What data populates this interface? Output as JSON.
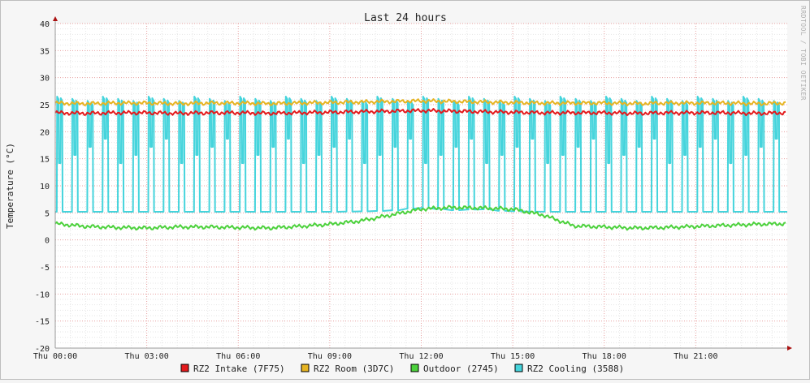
{
  "chart_data": {
    "type": "line",
    "title": "Last 24 hours",
    "ylabel": "Temperature (°C)",
    "xlabel": "",
    "watermark": "RRDTOOL / TOBI OETIKER",
    "ylim": [
      -20,
      40
    ],
    "yticks": [
      40,
      35,
      30,
      25,
      20,
      15,
      10,
      5,
      0,
      -5,
      -10,
      -15,
      -20
    ],
    "xlim": [
      0,
      24
    ],
    "xticks": [
      {
        "h": 0,
        "label": "Thu 00:00"
      },
      {
        "h": 3,
        "label": "Thu 03:00"
      },
      {
        "h": 6,
        "label": "Thu 06:00"
      },
      {
        "h": 9,
        "label": "Thu 09:00"
      },
      {
        "h": 12,
        "label": "Thu 12:00"
      },
      {
        "h": 15,
        "label": "Thu 15:00"
      },
      {
        "h": 18,
        "label": "Thu 18:00"
      },
      {
        "h": 21,
        "label": "Thu 21:00"
      }
    ],
    "grid": true,
    "legend_position": "bottom",
    "series": [
      {
        "name": "RZ2 Intake (7F75)",
        "color": "#e31a1c",
        "x": [
          0,
          1,
          2,
          3,
          4,
          5,
          6,
          7,
          8,
          9,
          10,
          11,
          12,
          13,
          14,
          15,
          16,
          17,
          18,
          19,
          20,
          21,
          22,
          23,
          24
        ],
        "values": [
          23.5,
          23.4,
          23.5,
          23.5,
          23.4,
          23.5,
          23.5,
          23.4,
          23.5,
          23.6,
          23.7,
          23.8,
          23.9,
          23.8,
          23.7,
          23.6,
          23.5,
          23.5,
          23.5,
          23.4,
          23.5,
          23.5,
          23.5,
          23.4,
          23.5
        ]
      },
      {
        "name": "RZ2 Room (3D7C)",
        "color": "#e6b422",
        "x": [
          0,
          1,
          2,
          3,
          4,
          5,
          6,
          7,
          8,
          9,
          10,
          11,
          12,
          13,
          14,
          15,
          16,
          17,
          18,
          19,
          20,
          21,
          22,
          23,
          24
        ],
        "values": [
          25.3,
          25.2,
          25.3,
          25.3,
          25.2,
          25.3,
          25.3,
          25.2,
          25.3,
          25.4,
          25.5,
          25.6,
          25.7,
          25.6,
          25.5,
          25.4,
          25.3,
          25.3,
          25.3,
          25.2,
          25.3,
          25.3,
          25.3,
          25.2,
          25.3
        ]
      },
      {
        "name": "Outdoor (2745)",
        "color": "#4cd13c",
        "x": [
          0,
          1,
          2,
          3,
          4,
          5,
          6,
          7,
          8,
          9,
          10,
          11,
          12,
          13,
          14,
          15,
          16,
          17,
          18,
          19,
          20,
          21,
          22,
          23,
          24
        ],
        "values": [
          3.0,
          2.5,
          2.3,
          2.2,
          2.4,
          2.4,
          2.3,
          2.2,
          2.5,
          2.9,
          3.5,
          4.6,
          5.7,
          6.0,
          5.9,
          5.7,
          4.6,
          2.6,
          2.4,
          2.2,
          2.3,
          2.5,
          2.7,
          2.9,
          3.0
        ]
      },
      {
        "name": "RZ2 Cooling (3588)",
        "color": "#45d4dc",
        "x": [
          0,
          0.2,
          0.25,
          0.55,
          0.6,
          1.5,
          2.5,
          3.5,
          4.5,
          5.5,
          6.5,
          7.5,
          8.5,
          9.5,
          10.5,
          11.5,
          12.0,
          13.0,
          13.5,
          14.0,
          14.5,
          15.0,
          16.5,
          17.5,
          18.5,
          19.5,
          20.5,
          21.5,
          22.5,
          23.5,
          24
        ],
        "values": [
          26.5,
          26.5,
          5.2,
          5.2,
          26.5,
          5.2,
          5.2,
          5.2,
          5.2,
          5.2,
          5.2,
          5.2,
          5.2,
          5.2,
          5.3,
          5.5,
          6.0,
          5.6,
          5.4,
          5.8,
          5.5,
          5.3,
          5.2,
          5.2,
          5.2,
          5.2,
          5.2,
          5.2,
          5.2,
          5.2,
          26.5
        ],
        "cycle": {
          "low": 5.2,
          "high": 26.5,
          "period_hours": 0.5
        }
      }
    ]
  }
}
